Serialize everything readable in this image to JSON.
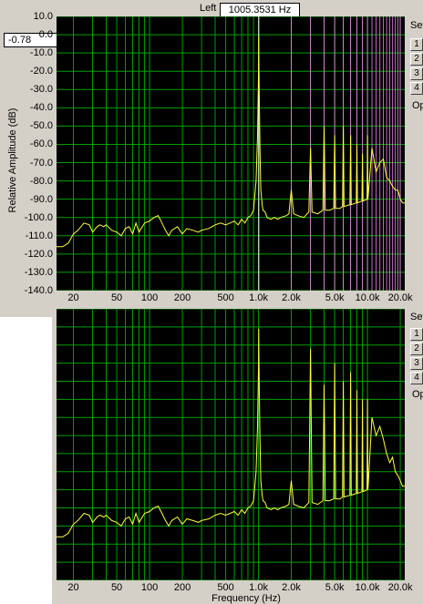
{
  "readouts": {
    "channel_label": "Left",
    "frequency": "1005.3531 Hz",
    "amplitude": "-0.78"
  },
  "side_controls": {
    "set_label": "Set",
    "buttons": [
      "1",
      "2",
      "3",
      "4"
    ],
    "op_label": "Op"
  },
  "colors": {
    "plot_bg": "#000000",
    "grid": "#00a000",
    "trace": "#ffff40",
    "peak_fill": "#202080",
    "harmonic_marker": "#ff80ff",
    "cursor": "#ffffff"
  },
  "chart_data": [
    {
      "type": "line",
      "title": "",
      "xlabel": "",
      "ylabel": "Relative Amplitude (dB)",
      "x_scale": "log",
      "xlim": [
        14,
        22000
      ],
      "ylim": [
        -140,
        10
      ],
      "y_ticks": [
        "10.0",
        "0.0",
        "-10.0",
        "-20.0",
        "-30.0",
        "-40.0",
        "-50.0",
        "-60.0",
        "-70.0",
        "-80.0",
        "-90.0",
        "-100.0",
        "-110.0",
        "-120.0",
        "-130.0",
        "-140.0"
      ],
      "x_ticks": [
        "20",
        "50",
        "100",
        "200",
        "500",
        "1.0k",
        "2.0k",
        "5.0k",
        "10.0k",
        "20.0k"
      ],
      "grid": true,
      "cursor_x": 1005.3531,
      "harmonic_markers": [
        2000,
        3000,
        4000,
        5000,
        6000,
        7000,
        8000,
        9000,
        10000,
        11000,
        12000,
        13000,
        14000,
        15000,
        16000,
        17000,
        18000,
        19000,
        20000
      ],
      "series": [
        {
          "x": [
            14,
            16,
            18,
            20,
            22,
            25,
            28,
            30,
            33,
            35,
            38,
            40,
            45,
            50,
            55,
            60,
            65,
            70,
            75,
            80,
            90,
            100,
            110,
            120,
            130,
            140,
            150,
            160,
            180,
            200,
            220,
            250,
            280,
            300,
            350,
            400,
            450,
            500,
            550,
            600,
            650,
            700,
            750,
            800,
            850,
            900,
            950,
            980,
            1000,
            1005,
            1010,
            1030,
            1050,
            1080,
            1100,
            1150,
            1200,
            1300,
            1400,
            1500,
            1600,
            1800,
            1900,
            2000,
            2100,
            2300,
            2600,
            2900,
            3000,
            3100,
            3500,
            3900,
            4000,
            4100,
            4500,
            4900,
            5000,
            5100,
            5600,
            5900,
            6000,
            6100,
            6900,
            7000,
            7100,
            7900,
            8000,
            8100,
            8900,
            9000,
            9100,
            9900,
            10000,
            10100,
            11000,
            12000,
            13000,
            14000,
            15000,
            16000,
            17000,
            18000,
            19000,
            20000,
            21000,
            22000
          ],
          "y": [
            -116,
            -116,
            -114,
            -109,
            -107,
            -103,
            -104,
            -108,
            -105,
            -104,
            -105,
            -104,
            -107,
            -108,
            -110,
            -106,
            -105,
            -109,
            -103,
            -108,
            -103,
            -102,
            -100,
            -99,
            -103,
            -107,
            -110,
            -107,
            -105,
            -109,
            -106,
            -107,
            -108,
            -107,
            -106,
            -104,
            -103,
            -104,
            -103,
            -102,
            -104,
            -101,
            -103,
            -100,
            -99,
            -96,
            -80,
            -55,
            -20,
            -1,
            -20,
            -60,
            -85,
            -93,
            -96,
            -97,
            -100,
            -101,
            -100,
            -101,
            -100,
            -99,
            -98,
            -85,
            -98,
            -99,
            -100,
            -97,
            -62,
            -97,
            -98,
            -96,
            -50,
            -96,
            -96,
            -95,
            -55,
            -95,
            -95,
            -94,
            -50,
            -94,
            -93,
            -55,
            -93,
            -92,
            -60,
            -92,
            -91,
            -65,
            -91,
            -90,
            -55,
            -90,
            -62,
            -75,
            -70,
            -68,
            -78,
            -80,
            -83,
            -85,
            -85,
            -90,
            -92,
            -92
          ]
        }
      ]
    },
    {
      "type": "line",
      "title": "",
      "xlabel": "Frequency (Hz)",
      "ylabel": "",
      "x_scale": "log",
      "xlim": [
        14,
        22000
      ],
      "ylim": [
        -140,
        10
      ],
      "x_ticks": [
        "20",
        "50",
        "100",
        "200",
        "500",
        "1.0k",
        "2.0k",
        "5.0k",
        "10.0k",
        "20.0k"
      ],
      "grid": true,
      "series": [
        {
          "x": [
            14,
            16,
            18,
            20,
            22,
            25,
            28,
            30,
            33,
            35,
            38,
            40,
            45,
            50,
            55,
            60,
            65,
            70,
            75,
            80,
            90,
            100,
            110,
            120,
            130,
            140,
            150,
            160,
            180,
            200,
            220,
            250,
            280,
            300,
            350,
            400,
            450,
            500,
            550,
            600,
            650,
            700,
            750,
            800,
            850,
            900,
            950,
            980,
            1000,
            1005,
            1010,
            1030,
            1050,
            1080,
            1100,
            1150,
            1200,
            1300,
            1400,
            1500,
            1600,
            1800,
            1900,
            2000,
            2100,
            2300,
            2600,
            2900,
            3000,
            3100,
            3500,
            3900,
            4000,
            4100,
            4500,
            4900,
            5000,
            5100,
            5600,
            5900,
            6000,
            6100,
            6900,
            7000,
            7100,
            7900,
            8000,
            8100,
            8900,
            9000,
            9100,
            9900,
            10000,
            10100,
            11000,
            12000,
            13000,
            14000,
            15000,
            16000,
            17000,
            18000,
            19000,
            20000,
            21000,
            22000
          ],
          "y": [
            -116,
            -116,
            -114,
            -109,
            -107,
            -103,
            -104,
            -108,
            -105,
            -104,
            -105,
            -104,
            -107,
            -108,
            -110,
            -106,
            -105,
            -109,
            -103,
            -108,
            -103,
            -102,
            -100,
            -99,
            -103,
            -107,
            -110,
            -107,
            -105,
            -109,
            -106,
            -107,
            -108,
            -107,
            -106,
            -104,
            -103,
            -104,
            -103,
            -102,
            -104,
            -101,
            -103,
            -100,
            -99,
            -96,
            -80,
            -55,
            -20,
            -1,
            -20,
            -60,
            -85,
            -93,
            -96,
            -97,
            -100,
            -101,
            -100,
            -101,
            -100,
            -99,
            -98,
            -85,
            -98,
            -99,
            -100,
            -97,
            -12,
            -97,
            -98,
            -96,
            -32,
            -96,
            -96,
            -95,
            -20,
            -95,
            -95,
            -94,
            -30,
            -94,
            -93,
            -25,
            -93,
            -92,
            -35,
            -92,
            -91,
            -40,
            -91,
            -90,
            -40,
            -90,
            -50,
            -60,
            -55,
            -62,
            -70,
            -75,
            -72,
            -80,
            -82,
            -85,
            -88,
            -88
          ]
        }
      ]
    }
  ]
}
